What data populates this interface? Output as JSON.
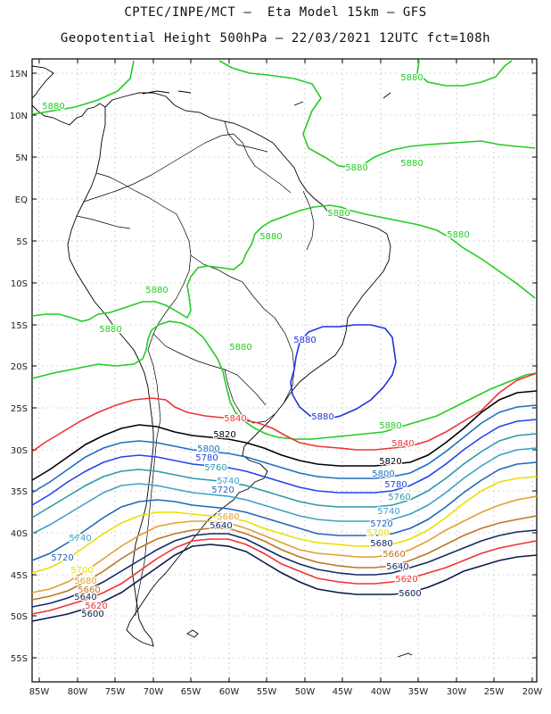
{
  "header": {
    "line1": "CPTEC/INPE/MCT –  Eta Model 15km – GFS",
    "line2": "Geopotential Height 500hPa – 22/03/2021 12UTC fct=108h"
  },
  "lat_labels": [
    "15N",
    "10N",
    "5N",
    "EQ",
    "5S",
    "10S",
    "15S",
    "20S",
    "25S",
    "30S",
    "35S",
    "40S",
    "45S",
    "50S",
    "55S"
  ],
  "lon_labels": [
    "85W",
    "80W",
    "75W",
    "70W",
    "65W",
    "60W",
    "55W",
    "50W",
    "45W",
    "40W",
    "35W",
    "30W",
    "25W",
    "20W"
  ],
  "contour_levels": [
    {
      "value": 5880,
      "color": "#22cc22"
    },
    {
      "value": 5880,
      "color": "#2233dd"
    },
    {
      "value": 5840,
      "color": "#ee3333"
    },
    {
      "value": 5820,
      "color": "#000000"
    },
    {
      "value": 5800,
      "color": "#1c6fc0"
    },
    {
      "value": 5780,
      "color": "#2244ee"
    },
    {
      "value": 5760,
      "color": "#2a9aa8"
    },
    {
      "value": 5740,
      "color": "#3da0c8"
    },
    {
      "value": 5720,
      "color": "#2266bb"
    },
    {
      "value": 5700,
      "color": "#e8e000"
    },
    {
      "value": 5680,
      "color": "#e2a030"
    },
    {
      "value": 5660,
      "color": "#bb7722"
    },
    {
      "value": 5640,
      "color": "#142a66"
    },
    {
      "value": 5620,
      "color": "#ee3333"
    },
    {
      "value": 5600,
      "color": "#0a1a4a"
    }
  ],
  "contour_labels": [
    {
      "text": "5880",
      "color": "#22cc22"
    },
    {
      "text": "5880",
      "color": "#22cc22"
    },
    {
      "text": "5880",
      "color": "#22cc22"
    },
    {
      "text": "5880",
      "color": "#22cc22"
    },
    {
      "text": "5880",
      "color": "#22cc22"
    },
    {
      "text": "5880",
      "color": "#22cc22"
    },
    {
      "text": "5880",
      "color": "#22cc22"
    },
    {
      "text": "5880",
      "color": "#22cc22"
    },
    {
      "text": "5880",
      "color": "#22cc22"
    },
    {
      "text": "5880",
      "color": "#22cc22"
    },
    {
      "text": "5880",
      "color": "#22cc22"
    },
    {
      "text": "5880",
      "color": "#2233dd"
    },
    {
      "text": "5880",
      "color": "#2233dd"
    },
    {
      "text": "5840",
      "color": "#ee3333"
    },
    {
      "text": "5840",
      "color": "#ee3333"
    },
    {
      "text": "5820",
      "color": "#000000"
    },
    {
      "text": "5820",
      "color": "#000000"
    },
    {
      "text": "5800",
      "color": "#1c6fc0"
    },
    {
      "text": "5800",
      "color": "#1c6fc0"
    },
    {
      "text": "5780",
      "color": "#2244ee"
    },
    {
      "text": "5780",
      "color": "#2244ee"
    },
    {
      "text": "5760",
      "color": "#2a9aa8"
    },
    {
      "text": "5760",
      "color": "#2a9aa8"
    },
    {
      "text": "5740",
      "color": "#3da0c8"
    },
    {
      "text": "5740",
      "color": "#3da0c8"
    },
    {
      "text": "5740",
      "color": "#3da0c8"
    },
    {
      "text": "5720",
      "color": "#2266bb"
    },
    {
      "text": "5720",
      "color": "#2266bb"
    },
    {
      "text": "5720",
      "color": "#2266bb"
    },
    {
      "text": "5700",
      "color": "#e8e000"
    },
    {
      "text": "5700",
      "color": "#e8e000"
    },
    {
      "text": "5680",
      "color": "#e2a030"
    },
    {
      "text": "5680",
      "color": "#142a66"
    },
    {
      "text": "5680",
      "color": "#e2a030"
    },
    {
      "text": "5660",
      "color": "#bb7722"
    },
    {
      "text": "5660",
      "color": "#bb7722"
    },
    {
      "text": "5640",
      "color": "#142a66"
    },
    {
      "text": "5640",
      "color": "#142a66"
    },
    {
      "text": "5640",
      "color": "#142a66"
    },
    {
      "text": "5620",
      "color": "#ee3333"
    },
    {
      "text": "5620",
      "color": "#ee3333"
    },
    {
      "text": "5600",
      "color": "#0a1a4a"
    },
    {
      "text": "5600",
      "color": "#0a1a4a"
    }
  ]
}
